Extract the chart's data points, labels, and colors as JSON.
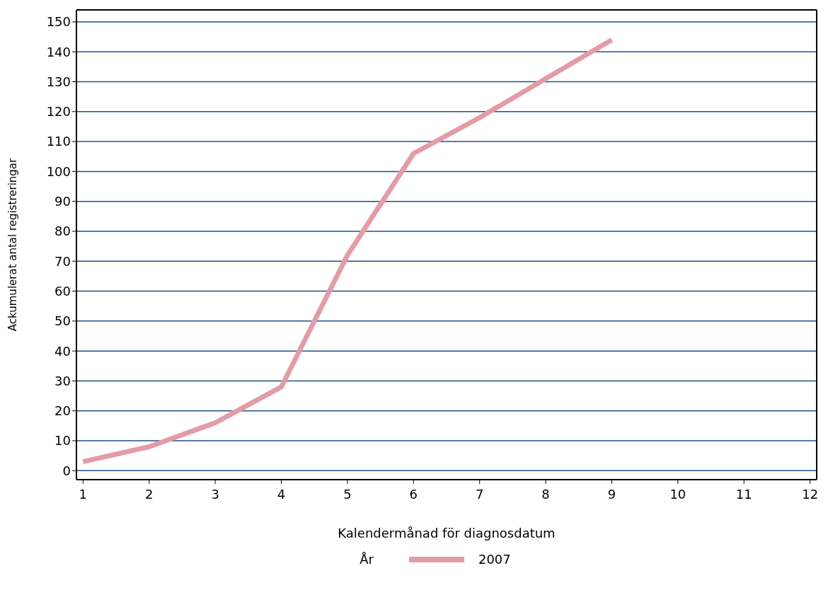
{
  "chart_data": {
    "type": "line",
    "xlabel": "Kalendermånad för diagnosdatum",
    "ylabel": "Ackumulerat antal registreringar",
    "legend_title": "År",
    "x": [
      1,
      2,
      3,
      4,
      5,
      6,
      7,
      8,
      9
    ],
    "series": [
      {
        "name": "2007",
        "color": "#e39ca7",
        "values": [
          3,
          8,
          16,
          28,
          72,
          106,
          118,
          131,
          144
        ]
      }
    ],
    "xlim": [
      0.9,
      12.1
    ],
    "xticks": [
      1,
      2,
      3,
      4,
      5,
      6,
      7,
      8,
      9,
      10,
      11,
      12
    ],
    "ylim": [
      -3,
      154
    ],
    "yticks": [
      0,
      10,
      20,
      30,
      40,
      50,
      60,
      70,
      80,
      90,
      100,
      110,
      120,
      130,
      140,
      150
    ],
    "grid": "y",
    "legend": "bottom",
    "marker": "none",
    "line_style": "solid"
  }
}
